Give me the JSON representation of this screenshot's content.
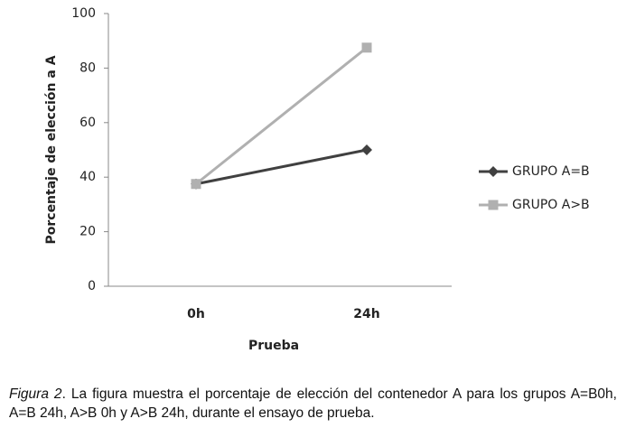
{
  "chart_data": {
    "type": "line",
    "x_label": "Prueba",
    "y_label": "Porcentaje de elección a A",
    "categories": [
      "0h",
      "24h"
    ],
    "series": [
      {
        "name": "GRUPO A=B",
        "color": "#404040",
        "marker": "diamond",
        "values": [
          37.5,
          50
        ]
      },
      {
        "name": "GRUPO A>B",
        "color": "#b0b0b0",
        "marker": "square",
        "values": [
          37.5,
          87.5
        ]
      }
    ],
    "ylim": [
      0,
      100
    ],
    "yticks": [
      0,
      20,
      40,
      60,
      80,
      100
    ],
    "grid": false,
    "legend": "right"
  },
  "caption": {
    "label": "Figura 2",
    "text": ". La figura muestra el porcentaje de elección del contenedor A para los grupos A=B0h, A=B 24h, A>B 0h y A>B 24h, durante el ensayo de prueba."
  }
}
